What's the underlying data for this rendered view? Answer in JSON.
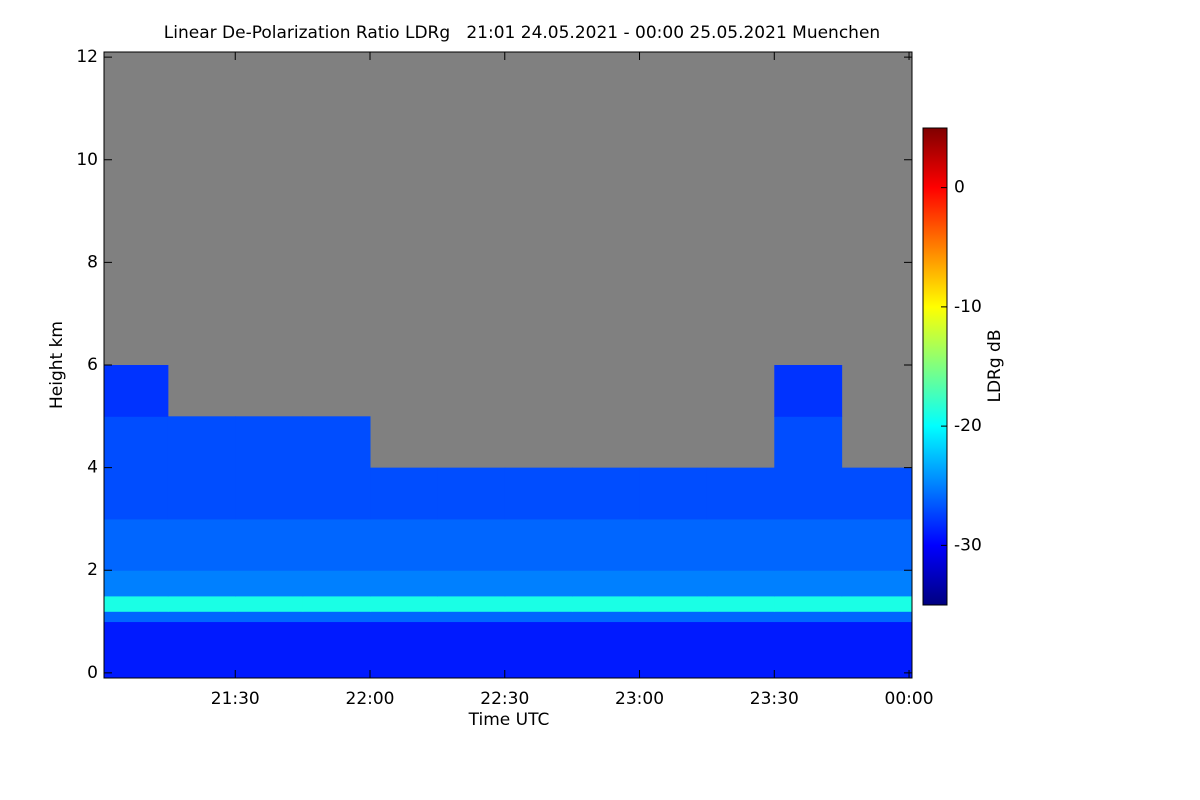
{
  "chart_data": {
    "type": "heatmap",
    "title": "Linear De-Polarization Ratio LDRg   21:01 24.05.2021 - 00:00 25.05.2021 Muenchen",
    "xlabel": "Time UTC",
    "ylabel": "Height km",
    "xlim": [
      21.013,
      24.011
    ],
    "ylim": [
      -0.1,
      12.1
    ],
    "xticks": [
      {
        "value": 21.5,
        "label": "21:30"
      },
      {
        "value": 22.0,
        "label": "22:00"
      },
      {
        "value": 22.5,
        "label": "22:30"
      },
      {
        "value": 23.0,
        "label": "23:00"
      },
      {
        "value": 23.5,
        "label": "23:30"
      },
      {
        "value": 24.0,
        "label": "00:00"
      }
    ],
    "yticks": [
      0,
      2,
      4,
      6,
      8,
      10,
      12
    ],
    "xbins": [
      21.013,
      21.25,
      21.5,
      21.75,
      22.0,
      22.25,
      22.5,
      22.75,
      23.0,
      23.25,
      23.5,
      23.75,
      24.011
    ],
    "ybins": [
      -0.1,
      1,
      1.2,
      1.5,
      2,
      3,
      4,
      5,
      6,
      12.1
    ],
    "z": [
      [
        -29,
        -29,
        -29,
        -29,
        -29,
        -29,
        -29,
        -29,
        -29,
        -29,
        -29,
        -29
      ],
      [
        -26,
        -26,
        -26,
        -26,
        -26,
        -26,
        -26,
        -26,
        -26,
        -26,
        -26,
        -26
      ],
      [
        -19,
        -19,
        -19,
        -19,
        -19,
        -19,
        -19,
        -19,
        -19,
        -19,
        -19,
        -19
      ],
      [
        -25,
        -25,
        -25,
        -25,
        -25,
        -25,
        -25,
        -25,
        -25,
        -25,
        -25,
        -25
      ],
      [
        -26,
        -26,
        -26,
        -26,
        -26,
        -26,
        -26,
        -26,
        -26,
        -26,
        -26,
        -26
      ],
      [
        -27,
        -27,
        -27,
        -27,
        -27,
        -27,
        -27,
        -27,
        -27,
        -27,
        -27,
        -27
      ],
      [
        -27,
        -27,
        -27,
        -27,
        null,
        null,
        null,
        null,
        null,
        null,
        -27,
        null
      ],
      [
        -28,
        null,
        null,
        null,
        null,
        null,
        null,
        null,
        null,
        null,
        -28,
        null
      ],
      [
        null,
        null,
        null,
        null,
        null,
        null,
        null,
        null,
        null,
        null,
        null,
        null
      ]
    ],
    "colormap": "jet",
    "missing_color": "#808080",
    "colorbar": {
      "label": "LDRg dB",
      "lim": [
        -35,
        5
      ],
      "ticks": [
        0,
        -10,
        -20,
        -30
      ]
    }
  }
}
